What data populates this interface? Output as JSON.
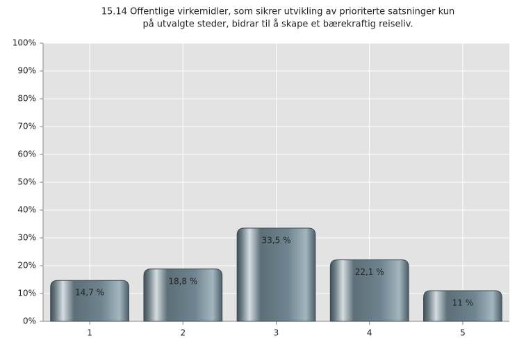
{
  "chart_data": {
    "type": "bar",
    "title": [
      "15.14 Offentlige virkemidler, som sikrer utvikling av prioriterte satsninger kun",
      "på utvalgte steder, bidrar til å skape et bærekraftig reiseliv."
    ],
    "categories": [
      "1",
      "2",
      "3",
      "4",
      "5"
    ],
    "values": [
      14.7,
      18.8,
      33.5,
      22.1,
      11
    ],
    "value_labels": [
      "14,7 %",
      "18,8 %",
      "33,5 %",
      "22,1 %",
      "11 %"
    ],
    "color": "#6f8590",
    "ylim": [
      0,
      100
    ],
    "yticks": [
      {
        "value": 0,
        "label": "0%"
      },
      {
        "value": 10,
        "label": "10%"
      },
      {
        "value": 20,
        "label": "20%"
      },
      {
        "value": 30,
        "label": "30%"
      },
      {
        "value": 40,
        "label": "40%"
      },
      {
        "value": 50,
        "label": "50%"
      },
      {
        "value": 60,
        "label": "60%"
      },
      {
        "value": 70,
        "label": "70%"
      },
      {
        "value": 80,
        "label": "80%"
      },
      {
        "value": 90,
        "label": "90%"
      },
      {
        "value": 100,
        "label": "100%"
      }
    ],
    "grid": true
  }
}
